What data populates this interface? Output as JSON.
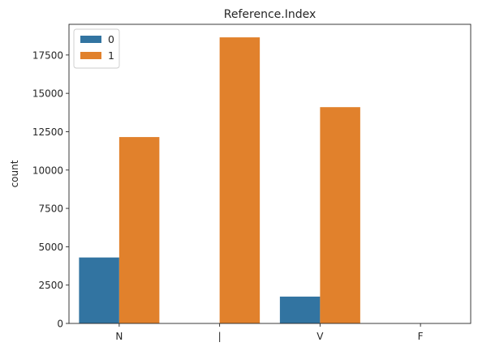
{
  "chart_data": {
    "type": "bar",
    "title": "Reference.Index",
    "xlabel": "",
    "ylabel": "count",
    "categories": [
      "N",
      "|",
      "V",
      "F"
    ],
    "series": [
      {
        "name": "0",
        "color": "#3274a1",
        "values": [
          4300,
          0,
          1750,
          0
        ]
      },
      {
        "name": "1",
        "color": "#e1812c",
        "values": [
          12150,
          18650,
          14100,
          0
        ]
      }
    ],
    "ylim": [
      0,
      19500
    ],
    "yticks": [
      0,
      2500,
      5000,
      7500,
      10000,
      12500,
      15000,
      17500
    ],
    "ytick_labels": [
      "0",
      "2500",
      "5000",
      "7500",
      "10000",
      "12500",
      "15000",
      "17500"
    ],
    "legend": {
      "placement": "top-left",
      "entries": [
        "0",
        "1"
      ]
    },
    "grid": false
  }
}
